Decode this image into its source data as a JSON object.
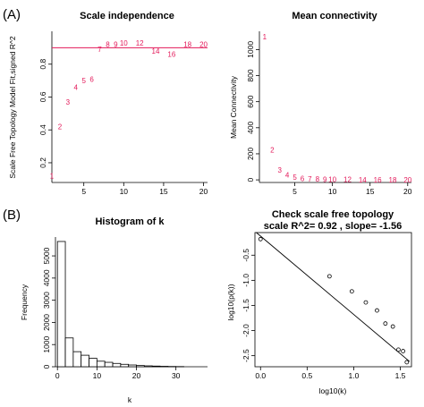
{
  "panel_labels": {
    "a": "(A)",
    "b": "(B)"
  },
  "colors": {
    "points": "#e3195a",
    "axis": "#000000",
    "bar_fill": "#ffffff"
  },
  "chart_data": [
    {
      "id": "scale_independence",
      "type": "scatter",
      "title": "Scale independence",
      "xlabel": "",
      "ylabel": "Scale Free Topology Model Fit,signed R^2",
      "xlim": [
        1,
        20.5
      ],
      "ylim": [
        0.08,
        1.0
      ],
      "xticks": [
        "5",
        "10",
        "15",
        "20"
      ],
      "yticks": [
        "0.2",
        "0.4",
        "0.6",
        "0.8"
      ],
      "xtick_values": [
        5,
        10,
        15,
        20
      ],
      "ytick_values": [
        0.2,
        0.4,
        0.6,
        0.8
      ],
      "threshold_line": 0.9,
      "points": [
        {
          "label": "1",
          "x": 1,
          "y": 0.12
        },
        {
          "label": "2",
          "x": 2,
          "y": 0.42
        },
        {
          "label": "3",
          "x": 3,
          "y": 0.57
        },
        {
          "label": "4",
          "x": 4,
          "y": 0.66
        },
        {
          "label": "5",
          "x": 5,
          "y": 0.7
        },
        {
          "label": "6",
          "x": 6,
          "y": 0.71
        },
        {
          "label": "7",
          "x": 7,
          "y": 0.89
        },
        {
          "label": "8",
          "x": 8,
          "y": 0.92
        },
        {
          "label": "9",
          "x": 9,
          "y": 0.92
        },
        {
          "label": "10",
          "x": 10,
          "y": 0.93
        },
        {
          "label": "12",
          "x": 12,
          "y": 0.93
        },
        {
          "label": "14",
          "x": 14,
          "y": 0.88
        },
        {
          "label": "16",
          "x": 16,
          "y": 0.86
        },
        {
          "label": "18",
          "x": 18,
          "y": 0.92
        },
        {
          "label": "20",
          "x": 20,
          "y": 0.92
        }
      ]
    },
    {
      "id": "mean_connectivity",
      "type": "scatter",
      "title": "Mean connectivity",
      "xlabel": "",
      "ylabel": "Mean Connectivity",
      "xlim": [
        0.3,
        20.5
      ],
      "ylim": [
        -20,
        1140
      ],
      "xticks": [
        "5",
        "10",
        "15",
        "20"
      ],
      "yticks": [
        "0",
        "200",
        "400",
        "600",
        "800",
        "1000"
      ],
      "xtick_values": [
        5,
        10,
        15,
        20
      ],
      "ytick_values": [
        0,
        200,
        400,
        600,
        800,
        1000
      ],
      "points": [
        {
          "label": "1",
          "x": 1,
          "y": 1100
        },
        {
          "label": "2",
          "x": 2,
          "y": 230
        },
        {
          "label": "3",
          "x": 3,
          "y": 75
        },
        {
          "label": "4",
          "x": 4,
          "y": 40
        },
        {
          "label": "5",
          "x": 5,
          "y": 20
        },
        {
          "label": "6",
          "x": 6,
          "y": 12
        },
        {
          "label": "7",
          "x": 7,
          "y": 8
        },
        {
          "label": "8",
          "x": 8,
          "y": 6
        },
        {
          "label": "9",
          "x": 9,
          "y": 5
        },
        {
          "label": "10",
          "x": 10,
          "y": 4
        },
        {
          "label": "12",
          "x": 12,
          "y": 3
        },
        {
          "label": "14",
          "x": 14,
          "y": 2
        },
        {
          "label": "16",
          "x": 16,
          "y": 2
        },
        {
          "label": "18",
          "x": 18,
          "y": 1
        },
        {
          "label": "20",
          "x": 20,
          "y": 1
        }
      ]
    },
    {
      "id": "histogram_k",
      "type": "bar",
      "title": "Histogram of k",
      "xlabel": "k",
      "ylabel": "Frequency",
      "xlim": [
        -0.5,
        38
      ],
      "ylim": [
        0,
        5850
      ],
      "xticks": [
        "0",
        "10",
        "20",
        "30"
      ],
      "yticks": [
        "0",
        "1000",
        "2000",
        "3000",
        "4000",
        "5000"
      ],
      "xtick_values": [
        0,
        10,
        20,
        30
      ],
      "ytick_values": [
        0,
        1000,
        2000,
        3000,
        4000,
        5000
      ],
      "bin_width": 2,
      "bin_starts": [
        0,
        2,
        4,
        6,
        8,
        10,
        12,
        14,
        16,
        18,
        20,
        22,
        24,
        26,
        28,
        30
      ],
      "values": [
        5650,
        1300,
        680,
        520,
        380,
        250,
        200,
        150,
        110,
        80,
        55,
        40,
        30,
        20,
        12,
        8
      ]
    },
    {
      "id": "scale_free_check",
      "type": "scatter",
      "title": "Check scale free topology",
      "subtitle": "scale R^2= 0.92 , slope= -1.56",
      "xlabel": "log10(k)",
      "ylabel": "log10(p(k))",
      "xlim": [
        -0.06,
        1.62
      ],
      "ylim": [
        -2.72,
        -0.05
      ],
      "xticks": [
        "0.0",
        "0.5",
        "1.0",
        "1.5"
      ],
      "yticks": [
        "-0.5",
        "-1.0",
        "-1.5",
        "-2.0",
        "-2.5"
      ],
      "xtick_values": [
        0,
        0.5,
        1.0,
        1.5
      ],
      "ytick_values": [
        -0.5,
        -1.0,
        -1.5,
        -2.0,
        -2.5
      ],
      "fit_line": {
        "intercept": -0.12,
        "slope": -1.56
      },
      "points": [
        {
          "x": 0.0,
          "y": -0.18
        },
        {
          "x": 0.74,
          "y": -0.92
        },
        {
          "x": 0.98,
          "y": -1.22
        },
        {
          "x": 1.13,
          "y": -1.44
        },
        {
          "x": 1.25,
          "y": -1.6
        },
        {
          "x": 1.34,
          "y": -1.86
        },
        {
          "x": 1.42,
          "y": -1.92
        },
        {
          "x": 1.48,
          "y": -2.38
        },
        {
          "x": 1.53,
          "y": -2.41
        },
        {
          "x": 1.57,
          "y": -2.63
        }
      ]
    }
  ]
}
